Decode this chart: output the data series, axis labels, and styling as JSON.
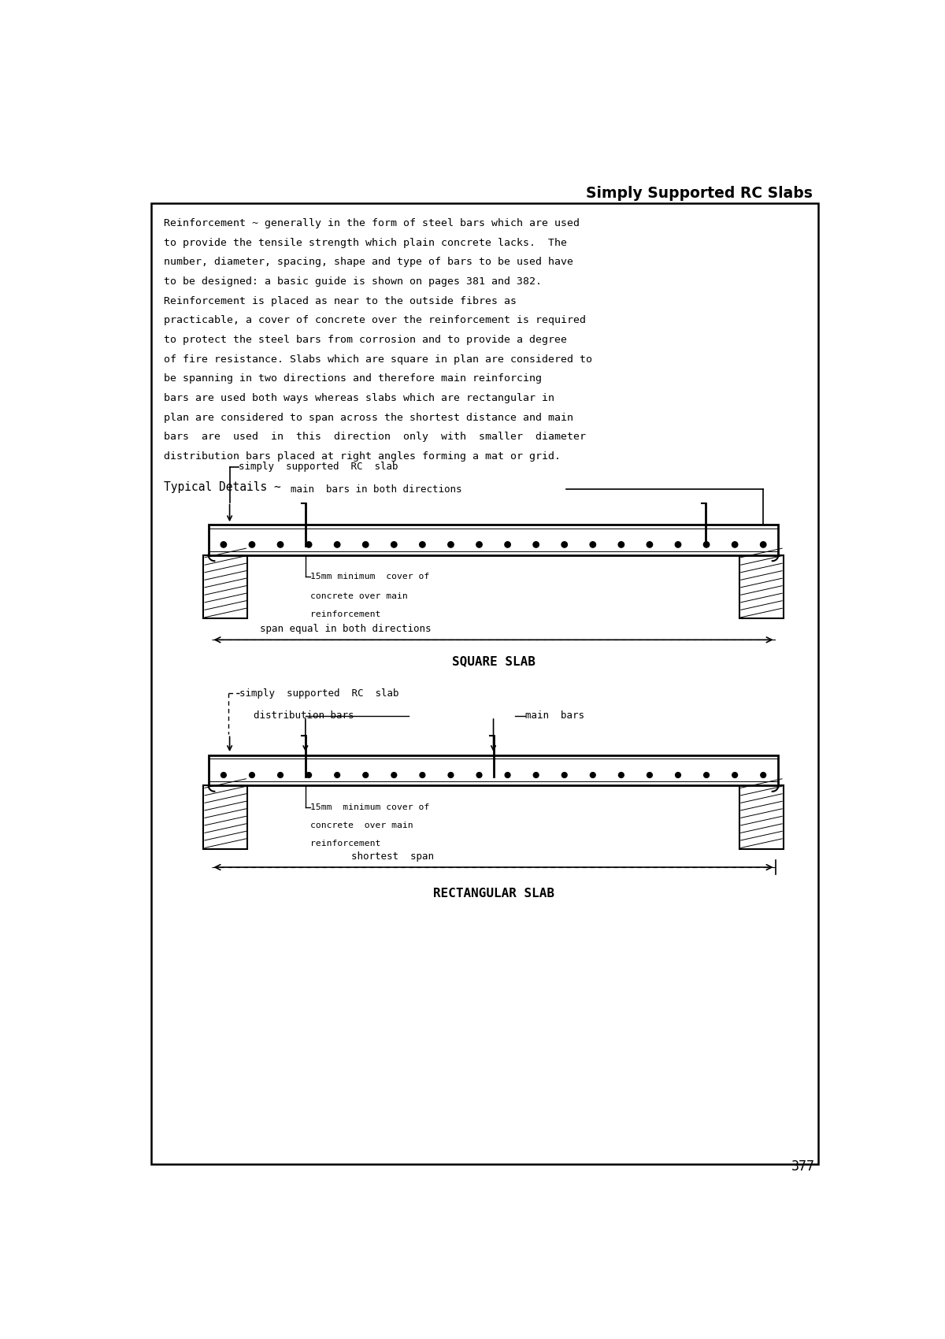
{
  "title": "Simply Supported RC Slabs",
  "page_number": "377",
  "body_text": [
    "Reinforcement ~ generally in the form of steel bars which are used",
    "to provide the tensile strength which plain concrete lacks.  The",
    "number, diameter, spacing, shape and type of bars to be used have",
    "to be designed: a basic guide is shown on pages 381 and 382.",
    "Reinforcement is placed as near to the outside fibres as",
    "practicable, a cover of concrete over the reinforcement is required",
    "to protect the steel bars from corrosion and to provide a degree",
    "of fire resistance. Slabs which are square in plan are considered to",
    "be spanning in two directions and therefore main reinforcing",
    "bars are used both ways whereas slabs which are rectangular in",
    "plan are considered to span across the shortest distance and main",
    "bars  are  used  in  this  direction  only  with  smaller  diameter",
    "distribution bars placed at right angles forming a mat or grid."
  ],
  "typical_details_label": "Typical Details ~",
  "bg_color": "#ffffff",
  "line_color": "#000000",
  "border_color": "#000000"
}
